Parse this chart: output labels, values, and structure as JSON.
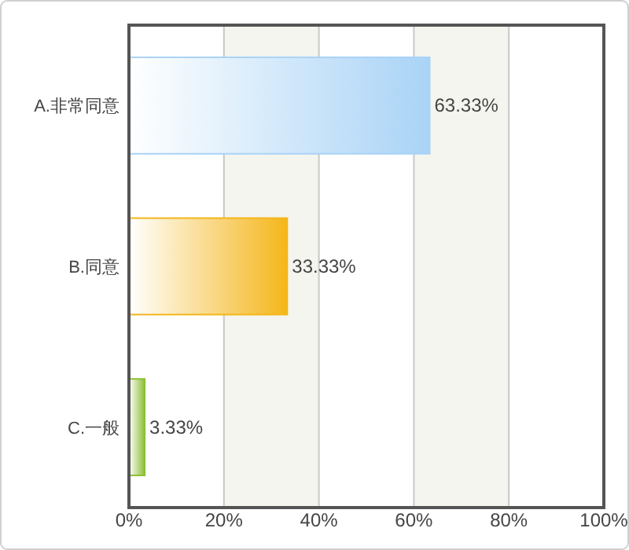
{
  "chart_data": {
    "type": "bar",
    "orientation": "horizontal",
    "categories": [
      "A.非常同意",
      "B.同意",
      "C.一般"
    ],
    "values": [
      63.33,
      33.33,
      3.33
    ],
    "colors": [
      "#a9d3f6",
      "#f4b61a",
      "#8dbf35"
    ],
    "value_labels": [
      "63.33%",
      "33.33%",
      "3.33%"
    ],
    "xlim": [
      0,
      100
    ],
    "xticks": [
      {
        "value": 0,
        "label": "0%"
      },
      {
        "value": 20,
        "label": "20%"
      },
      {
        "value": 40,
        "label": "40%"
      },
      {
        "value": 60,
        "label": "60%"
      },
      {
        "value": 80,
        "label": "80%"
      },
      {
        "value": 100,
        "label": "100%"
      }
    ],
    "grid": "x"
  }
}
